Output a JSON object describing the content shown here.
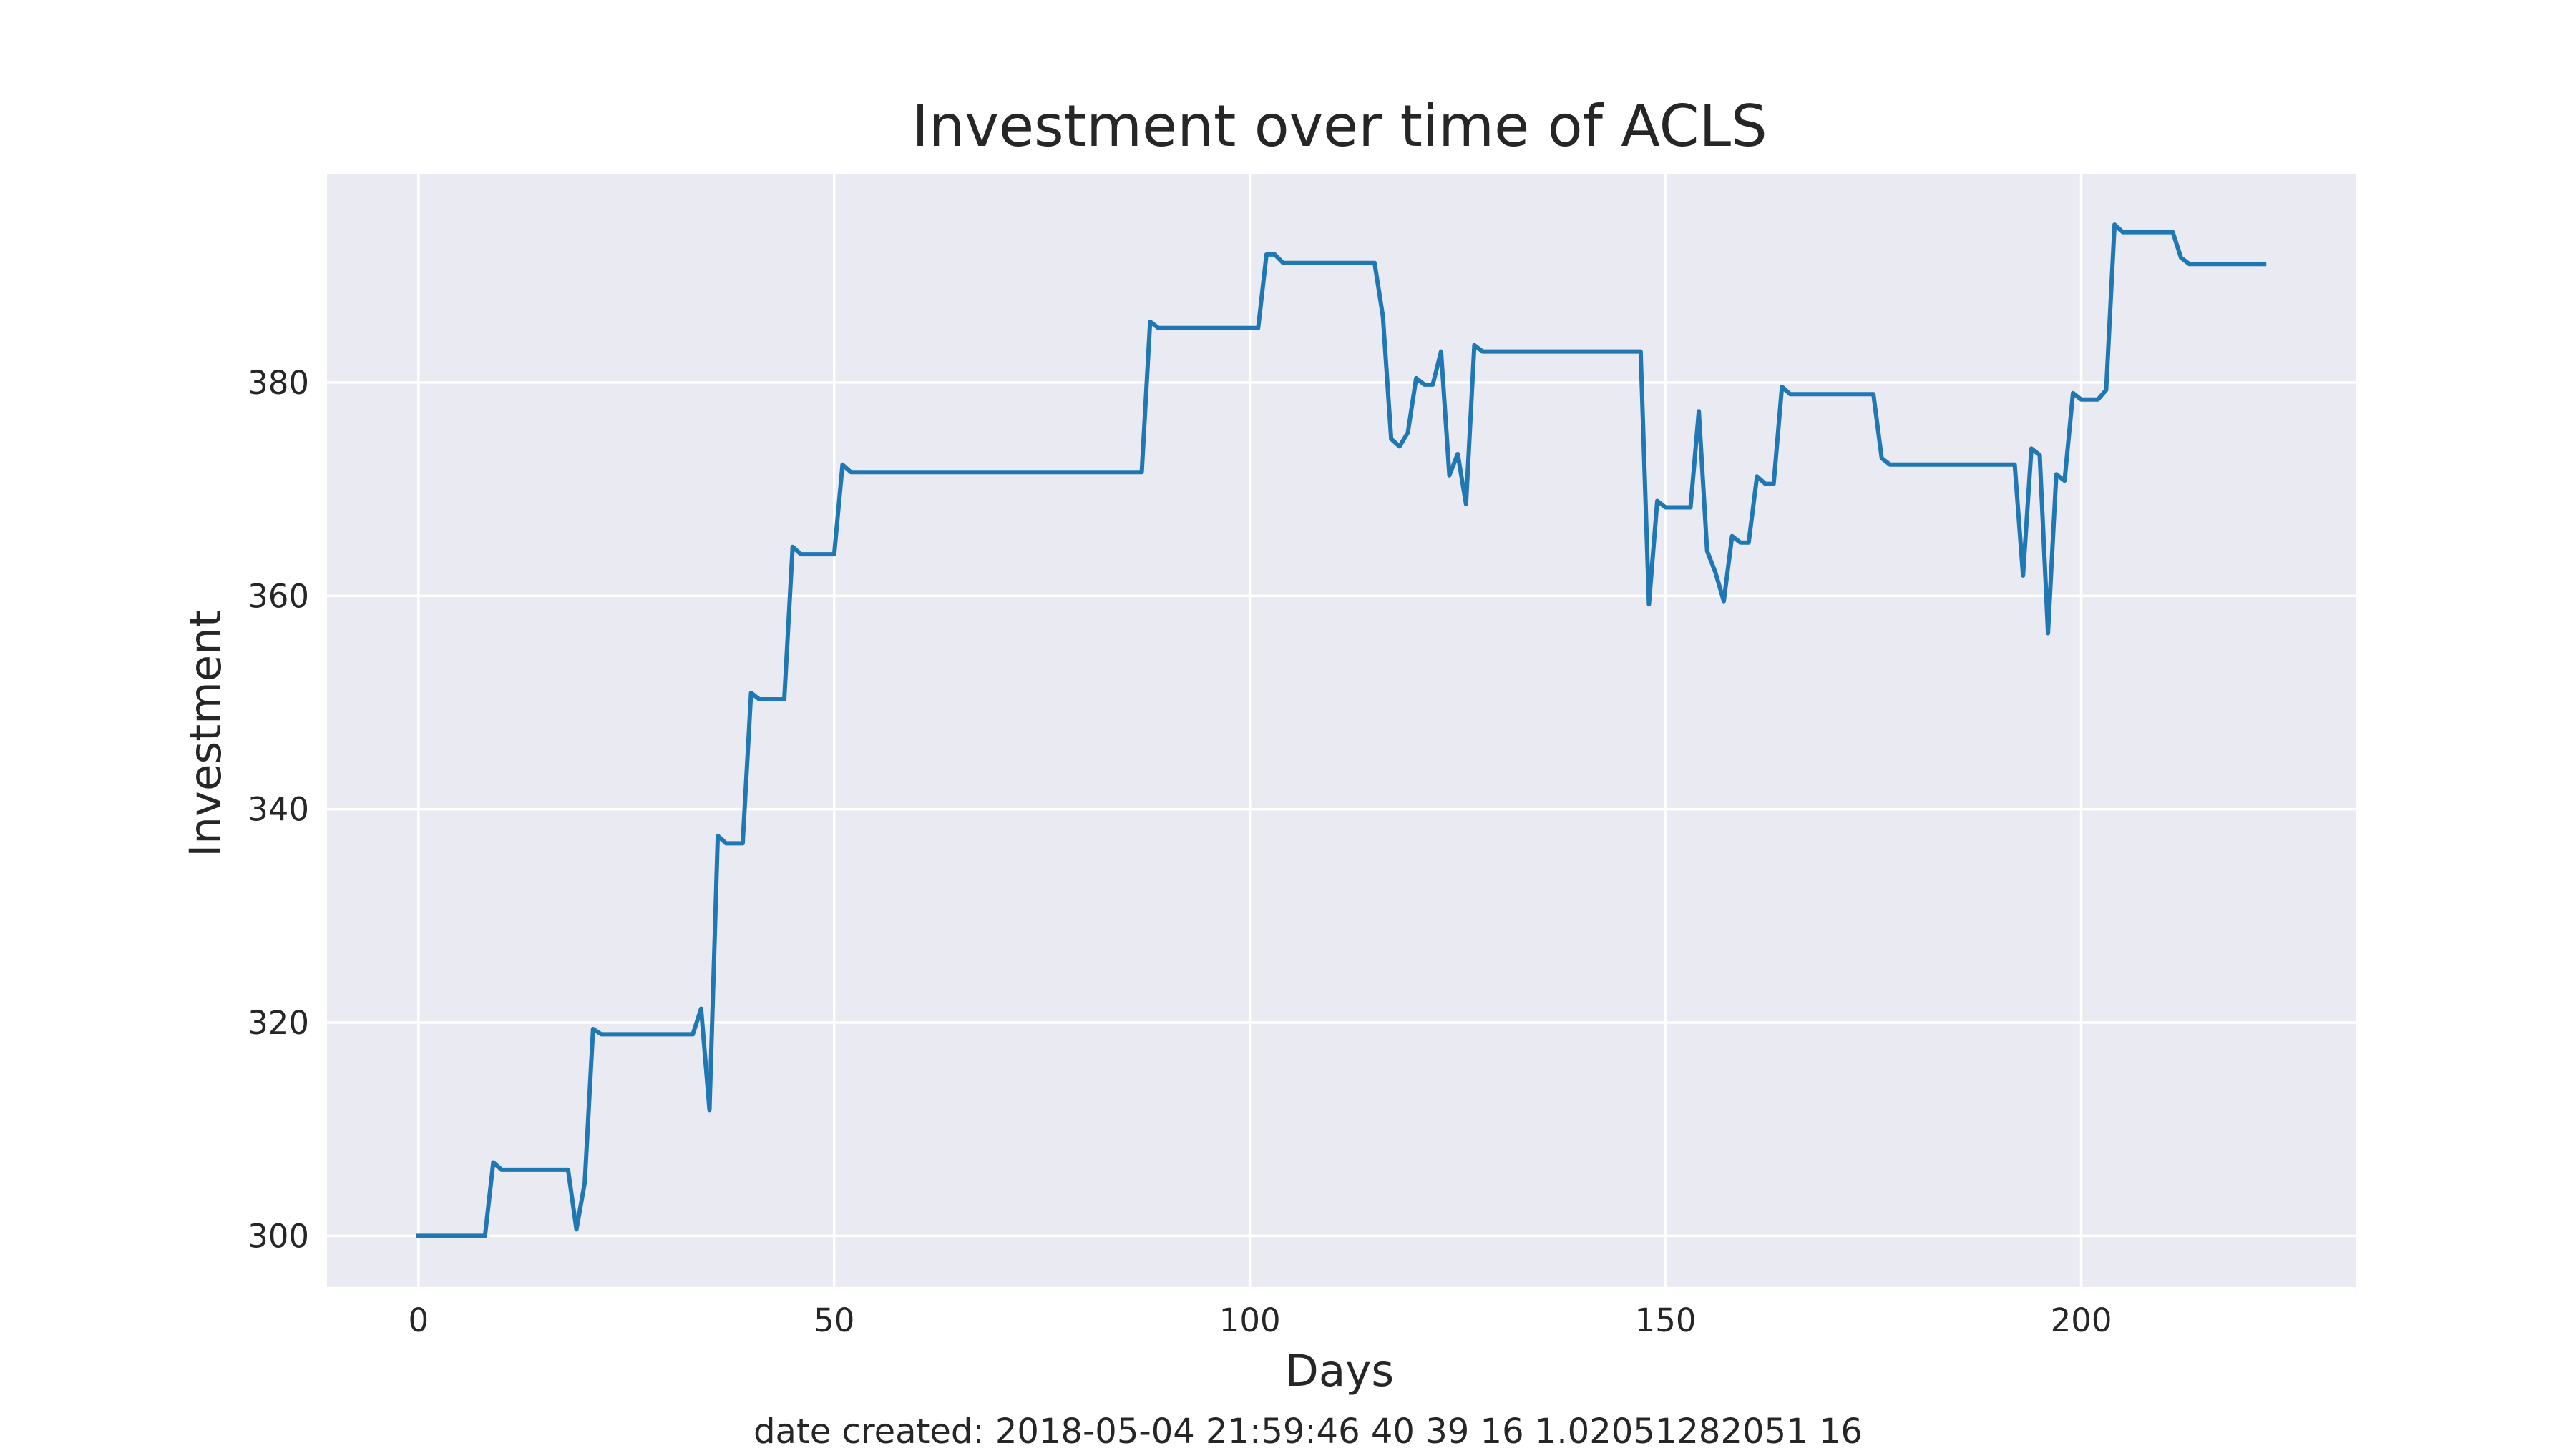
{
  "chart_data": {
    "type": "line",
    "title": "Investment over time of ACLS",
    "xlabel": "Days",
    "ylabel": "Investment",
    "footer": "date created: 2018-05-04 21:59:46 40 39 16 1.02051282051 16",
    "xlim": [
      -11,
      233
    ],
    "ylim": [
      295.2,
      399.5
    ],
    "xticks": [
      0,
      50,
      100,
      150,
      200
    ],
    "yticks": [
      300,
      320,
      340,
      360,
      380
    ],
    "grid": true,
    "background": "#eaeaf2",
    "line_color": "#1f77b4",
    "series": [
      {
        "x": [
          0,
          8,
          9,
          10,
          18,
          19,
          20,
          21,
          22,
          33,
          34,
          35,
          36,
          37,
          39,
          40,
          41,
          44,
          45,
          46,
          50,
          51,
          52,
          87,
          88,
          89,
          101,
          102,
          103,
          104,
          115,
          116,
          117,
          118,
          119,
          120,
          121,
          122,
          123,
          124,
          125,
          126,
          127,
          128,
          147,
          148,
          149,
          150,
          153,
          154,
          155,
          156,
          157,
          158,
          159,
          160,
          161,
          162,
          163,
          164,
          165,
          175,
          176,
          177,
          192,
          193,
          194,
          195,
          196,
          197,
          198,
          199,
          200,
          202,
          203,
          204,
          205,
          211,
          212,
          213,
          222
        ],
        "y": [
          300,
          300,
          306.9,
          306.2,
          306.2,
          300.6,
          305,
          319.4,
          318.9,
          318.9,
          321.3,
          311.8,
          337.5,
          336.8,
          336.8,
          350.9,
          350.3,
          350.3,
          364.6,
          363.9,
          363.9,
          372.3,
          371.6,
          371.6,
          385.7,
          385.1,
          385.1,
          392,
          392,
          391.2,
          391.2,
          386.2,
          374.7,
          374,
          375.3,
          380.4,
          379.8,
          379.8,
          382.9,
          371.3,
          373.3,
          368.6,
          383.5,
          382.9,
          382.9,
          359.2,
          368.9,
          368.3,
          368.3,
          377.3,
          364.2,
          362.2,
          359.5,
          365.6,
          365,
          365,
          371.2,
          370.5,
          370.5,
          379.6,
          378.9,
          378.9,
          372.9,
          372.3,
          372.3,
          361.9,
          373.8,
          373.2,
          356.5,
          371.4,
          370.8,
          379,
          378.4,
          378.4,
          379.3,
          394.8,
          394.1,
          394.1,
          391.7,
          391.1,
          391.1
        ]
      }
    ]
  }
}
